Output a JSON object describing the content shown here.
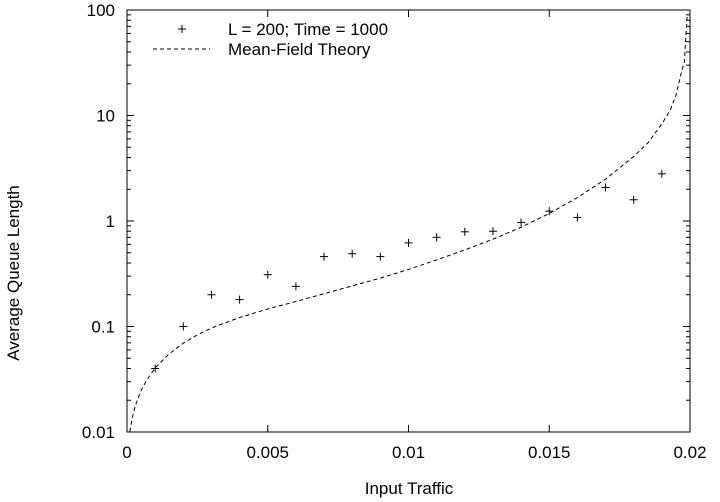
{
  "chart_data": {
    "type": "scatter",
    "title": "",
    "xlabel": "Input Traffic",
    "ylabel": "Average Queue Length",
    "xlim": [
      0,
      0.02
    ],
    "ylim": [
      0.01,
      100
    ],
    "yscale": "log",
    "grid": false,
    "legend_position": "top-left",
    "x_ticks": [
      "0",
      "0.005",
      "0.01",
      "0.015",
      "0.02"
    ],
    "y_ticks": [
      "0.01",
      "0.1",
      "1",
      "10",
      "100"
    ],
    "series": [
      {
        "name": "L = 200; Time = 1000",
        "type": "scatter",
        "marker": "+",
        "color": "#000000",
        "x": [
          0.001,
          0.002,
          0.003,
          0.004,
          0.005,
          0.006,
          0.007,
          0.008,
          0.009,
          0.01,
          0.011,
          0.012,
          0.013,
          0.014,
          0.015,
          0.016,
          0.017,
          0.018,
          0.019
        ],
        "y": [
          0.04,
          0.1,
          0.2,
          0.18,
          0.31,
          0.24,
          0.46,
          0.49,
          0.46,
          0.62,
          0.7,
          0.79,
          0.8,
          0.97,
          1.24,
          1.08,
          2.08,
          1.59,
          2.8
        ]
      },
      {
        "name": "Mean-Field Theory",
        "type": "line",
        "style": "dashed",
        "color": "#000000",
        "x": [
          0.0001,
          0.0002,
          0.0003,
          0.0005,
          0.0007,
          0.001,
          0.0015,
          0.002,
          0.0025,
          0.003,
          0.004,
          0.005,
          0.006,
          0.007,
          0.008,
          0.009,
          0.01,
          0.011,
          0.012,
          0.013,
          0.014,
          0.015,
          0.016,
          0.017,
          0.018,
          0.0185,
          0.019,
          0.0193,
          0.0195,
          0.0197,
          0.0198,
          0.0199
        ],
        "y": [
          0.0101,
          0.0141,
          0.0179,
          0.0247,
          0.031,
          0.0405,
          0.0551,
          0.0695,
          0.0833,
          0.0968,
          0.1217,
          0.1465,
          0.1725,
          0.2046,
          0.2426,
          0.2876,
          0.3474,
          0.4278,
          0.5324,
          0.6719,
          0.8726,
          1.178,
          1.667,
          2.491,
          4.09,
          5.48,
          8.32,
          11.27,
          15.49,
          26.11,
          32.37,
          90.0
        ]
      }
    ]
  }
}
